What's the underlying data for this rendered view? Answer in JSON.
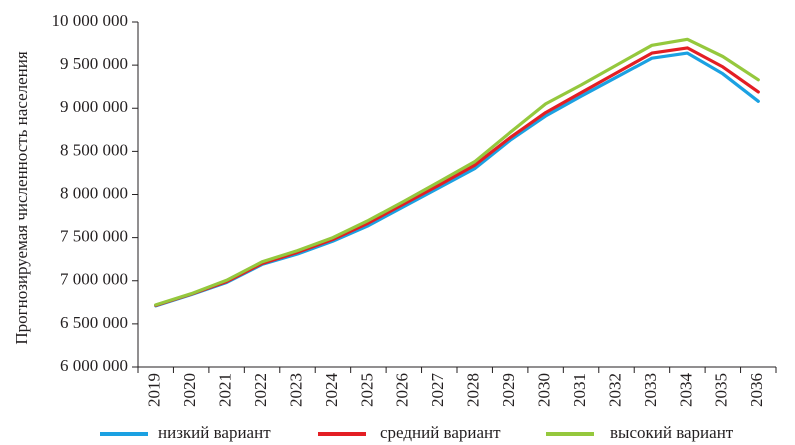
{
  "chart_data": {
    "type": "line",
    "title": "",
    "xlabel": "",
    "ylabel": "Прогнозируемая численность населения",
    "categories": [
      "2019",
      "2020",
      "2021",
      "2022",
      "2023",
      "2024",
      "2025",
      "2026",
      "2027",
      "2028",
      "2029",
      "2030",
      "2031",
      "2032",
      "2033",
      "2034",
      "2035",
      "2036"
    ],
    "y_tick_labels": [
      "6 000 000",
      "6 500 000",
      "7 000 000",
      "7 500 000",
      "8 000 000",
      "8 500 000",
      "9 000 000",
      "9 500 000",
      "10 000 000"
    ],
    "y_ticks": [
      6000000,
      6500000,
      7000000,
      7500000,
      8000000,
      8500000,
      9000000,
      9500000,
      10000000
    ],
    "ylim": [
      6000000,
      10000000
    ],
    "grid": false,
    "legend_position": "bottom",
    "series": [
      {
        "name": "низкий вариант",
        "color": "#1ba1e2",
        "values": [
          6710000,
          6840000,
          6980000,
          7190000,
          7310000,
          7460000,
          7640000,
          7860000,
          8080000,
          8300000,
          8630000,
          8910000,
          9140000,
          9360000,
          9580000,
          9640000,
          9400000,
          9080000
        ]
      },
      {
        "name": "средний вариант",
        "color": "#e31e24",
        "values": [
          6715000,
          6845000,
          6990000,
          7200000,
          7330000,
          7480000,
          7670000,
          7890000,
          8110000,
          8340000,
          8660000,
          8950000,
          9180000,
          9410000,
          9640000,
          9700000,
          9480000,
          9190000
        ]
      },
      {
        "name": "высокий вариант",
        "color": "#95c83d",
        "values": [
          6720000,
          6850000,
          7005000,
          7220000,
          7350000,
          7500000,
          7700000,
          7920000,
          8150000,
          8380000,
          8720000,
          9050000,
          9270000,
          9500000,
          9730000,
          9800000,
          9600000,
          9330000
        ]
      }
    ]
  }
}
